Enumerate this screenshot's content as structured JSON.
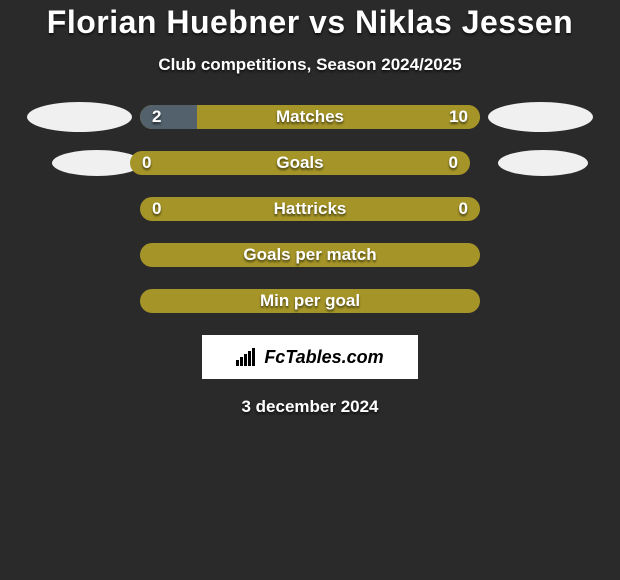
{
  "title": "Florian Huebner vs Niklas Jessen",
  "subtitle": "Club competitions, Season 2024/2025",
  "brand": "FcTables.com",
  "date": "3 december 2024",
  "colors": {
    "background": "#2a2a2a",
    "ellipse": "#f0f0f0",
    "bar_base": "#a59528",
    "bar_left_fill": "#52616b",
    "bar_right_fill": "#a59528",
    "text": "#ffffff"
  },
  "rows": [
    {
      "label": "Matches",
      "left_value": "2",
      "right_value": "10",
      "left_pct": 16.7,
      "right_pct": 83.3,
      "show_ellipses": true,
      "show_values": true
    },
    {
      "label": "Goals",
      "left_value": "0",
      "right_value": "0",
      "left_pct": 0,
      "right_pct": 0,
      "show_ellipses": true,
      "show_values": true,
      "ellipse_offset": true
    },
    {
      "label": "Hattricks",
      "left_value": "0",
      "right_value": "0",
      "left_pct": 0,
      "right_pct": 0,
      "show_ellipses": false,
      "show_values": true
    },
    {
      "label": "Goals per match",
      "left_value": "",
      "right_value": "",
      "left_pct": 0,
      "right_pct": 0,
      "show_ellipses": false,
      "show_values": false
    },
    {
      "label": "Min per goal",
      "left_value": "",
      "right_value": "",
      "left_pct": 0,
      "right_pct": 0,
      "show_ellipses": false,
      "show_values": false
    }
  ]
}
